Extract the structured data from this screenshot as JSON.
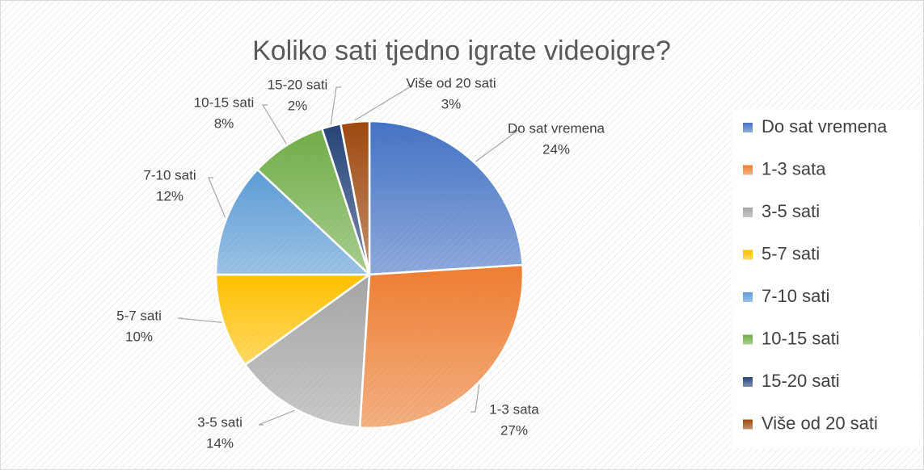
{
  "chart_data": {
    "type": "pie",
    "title": "Koliko sati tjedno igrate videoigre?",
    "categories": [
      "Do sat vremena",
      "1-3 sata",
      "3-5 sati",
      "5-7 sati",
      "7-10 sati",
      "10-15 sati",
      "15-20 sati",
      "Više od 20 sati"
    ],
    "values": [
      24,
      27,
      14,
      10,
      12,
      8,
      2,
      3
    ],
    "value_labels": [
      "24%",
      "27%",
      "14%",
      "10%",
      "12%",
      "8%",
      "2%",
      "3%"
    ],
    "colors": [
      "#4472c4",
      "#ed7d31",
      "#a5a5a5",
      "#ffc000",
      "#5b9bd5",
      "#70ad47",
      "#264478",
      "#9e480e"
    ],
    "legend": "right"
  }
}
